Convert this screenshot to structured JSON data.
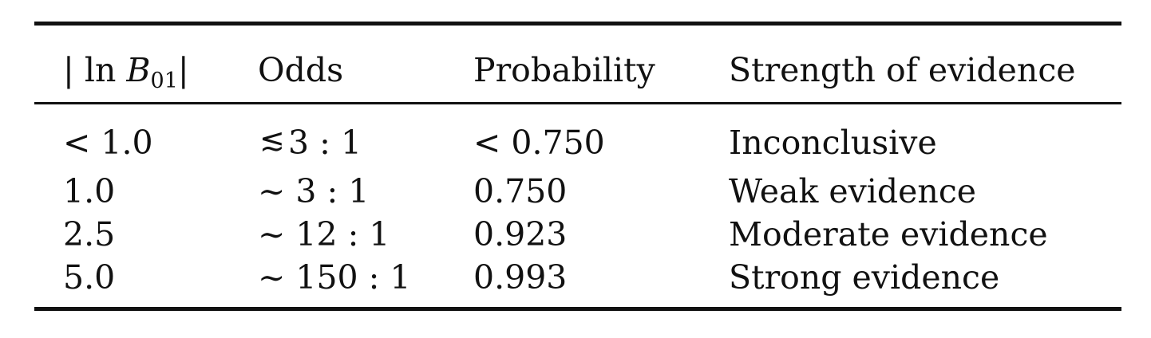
{
  "table": {
    "headers": {
      "col1_prefix": "| ln ",
      "col1_var": "B",
      "col1_sub": "01",
      "col1_suffix": "|",
      "col2": "Odds",
      "col3": "Probability",
      "col4": "Strength of evidence"
    },
    "rows": [
      {
        "ln_b01": "< 1.0",
        "odds_sym": "≲",
        "odds_value": "3 : 1",
        "probability": "< 0.750",
        "strength": "Inconclusive"
      },
      {
        "ln_b01": "1.0",
        "odds": "∼ 3 : 1",
        "probability": "0.750",
        "strength": "Weak evidence"
      },
      {
        "ln_b01": "2.5",
        "odds": "∼ 12 : 1",
        "probability": "0.923",
        "strength": "Moderate evidence"
      },
      {
        "ln_b01": "5.0",
        "odds": "∼ 150 : 1",
        "probability": "0.993",
        "strength": "Strong evidence"
      }
    ]
  }
}
